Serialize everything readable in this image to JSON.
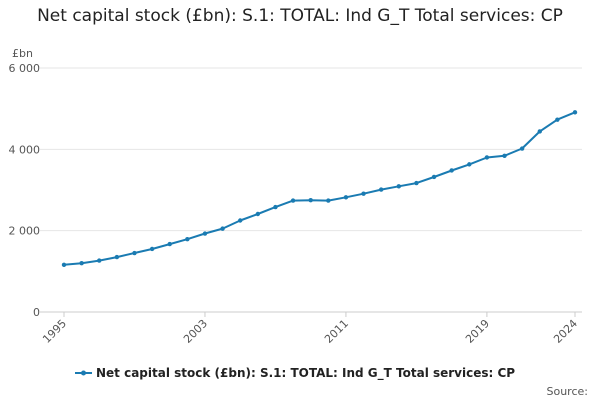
{
  "chart_data": {
    "type": "line",
    "title": "Net capital stock (£bn): S.1: TOTAL: Ind G_T Total services: CP",
    "unit_label": "£bn",
    "xlabel": "",
    "ylabel": "",
    "ylim": [
      0,
      6000
    ],
    "xlim": [
      1995,
      2024
    ],
    "y_ticks": [
      {
        "value": 0,
        "label": "0"
      },
      {
        "value": 2000,
        "label": "2 000"
      },
      {
        "value": 4000,
        "label": "4 000"
      },
      {
        "value": 6000,
        "label": "6 000"
      }
    ],
    "x_ticks": [
      {
        "value": 1995,
        "label": "1995"
      },
      {
        "value": 2003,
        "label": "2003"
      },
      {
        "value": 2011,
        "label": "2011"
      },
      {
        "value": 2019,
        "label": "2019"
      },
      {
        "value": 2024,
        "label": "2024"
      }
    ],
    "grid": "horizontal",
    "legend_position": "bottom",
    "source_label": "Source:",
    "color": "#1a7bb2",
    "series": [
      {
        "name": "Net capital stock (£bn): S.1: TOTAL: Ind G_T Total services: CP",
        "x": [
          1995,
          1996,
          1997,
          1998,
          1999,
          2000,
          2001,
          2002,
          2003,
          2004,
          2005,
          2006,
          2007,
          2008,
          2009,
          2010,
          2011,
          2012,
          2013,
          2014,
          2015,
          2016,
          2017,
          2018,
          2019,
          2020,
          2021,
          2022,
          2023,
          2024
        ],
        "values": [
          1160,
          1200,
          1265,
          1350,
          1450,
          1550,
          1670,
          1790,
          1930,
          2050,
          2250,
          2410,
          2580,
          2740,
          2750,
          2740,
          2820,
          2910,
          3010,
          3090,
          3170,
          3320,
          3480,
          3630,
          3800,
          3840,
          4020,
          4440,
          4730,
          4910
        ]
      }
    ]
  }
}
